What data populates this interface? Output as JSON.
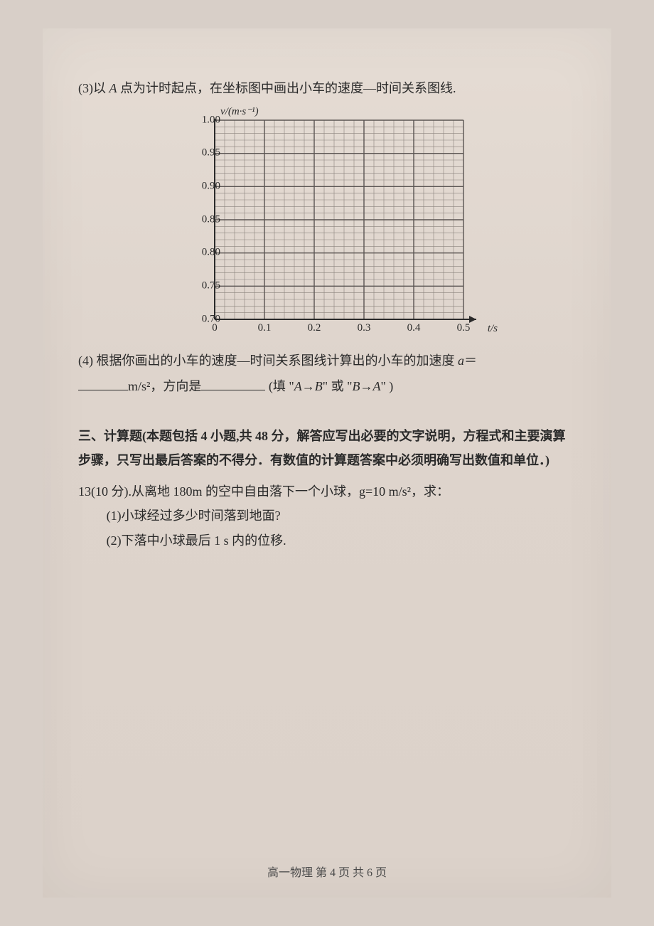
{
  "q3": {
    "label": "(3)",
    "text_before_A": "以 ",
    "A": "A",
    "text_after_A": " 点为计时起点，在坐标图中画出小车的速度—时间关系图线."
  },
  "chart": {
    "type": "grid-only",
    "y_axis_title": "v/(m·s⁻¹)",
    "x_axis_title": "t/s",
    "xlim": [
      0,
      0.5
    ],
    "ylim": [
      0.7,
      1.0
    ],
    "x_major_ticks": [
      0,
      0.1,
      0.2,
      0.3,
      0.4,
      0.5
    ],
    "x_major_labels": [
      "0",
      "0.1",
      "0.2",
      "0.3",
      "0.4",
      "0.5"
    ],
    "y_major_ticks": [
      0.7,
      0.75,
      0.8,
      0.85,
      0.9,
      0.95,
      1.0
    ],
    "y_major_labels": [
      "0.70",
      "0.75",
      "0.80",
      "0.85",
      "0.90",
      "0.95",
      "1.00"
    ],
    "x_minor_per_major": 5,
    "y_minor_per_major": 5,
    "background_color": "#ded4cc",
    "major_grid_color": "#5a5452",
    "minor_grid_color": "#8a827c",
    "major_grid_width": 1.4,
    "minor_grid_width": 0.6,
    "axis_color": "#2a2a2a",
    "axis_width": 2.0,
    "label_fontsize": 15,
    "title_fontsize": 15
  },
  "q4": {
    "label": "(4)",
    "line1_a": "根据你画出的小车的速度—时间关系图线计算出的小车的加速度 ",
    "a_sym": "a",
    "eq": "＝",
    "unit": "m/s²，方向是",
    "fill_hint_a": "(填 \"",
    "AtoB": "A→B",
    "fill_mid": "\" 或 \"",
    "BtoA": "B→A",
    "fill_end": "\" )"
  },
  "section3": {
    "title": "三、计算题(本题包括 4 小题,共 48 分，解答应写出必要的文字说明，方程式和主要演算步骤，只写出最后答案的不得分．有数值的计算题答案中必须明确写出数值和单位．)"
  },
  "q13": {
    "label": "13(10 分).",
    "stem": "从离地 180m 的空中自由落下一个小球，g=10 m/s²，求：",
    "sub1": "(1)小球经过多少时间落到地面?",
    "sub2": "(2)下落中小球最后 1 s 内的位移."
  },
  "footer": {
    "text": "高一物理 第 4 页 共 6 页"
  }
}
